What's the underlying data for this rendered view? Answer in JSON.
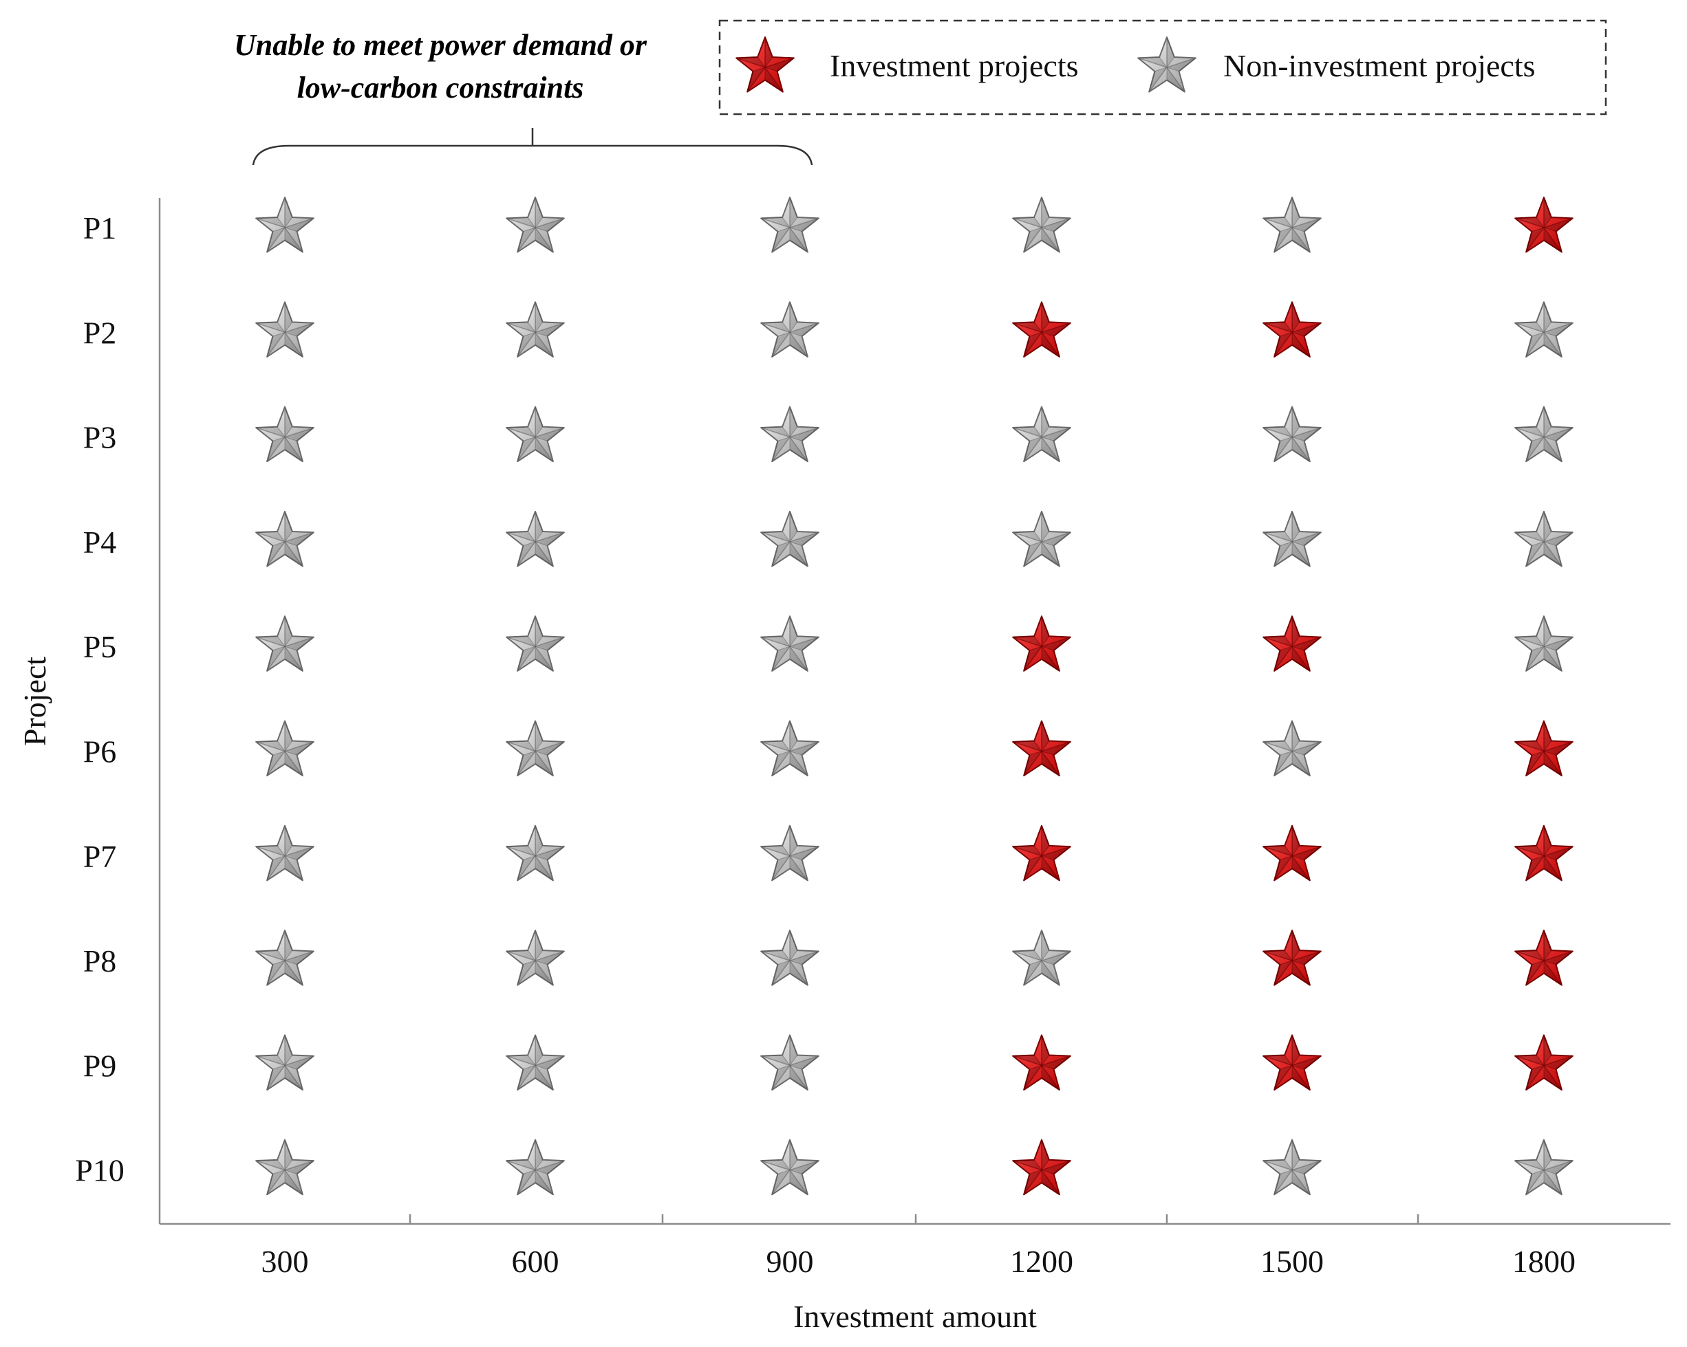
{
  "colors": {
    "investment": "#e01010",
    "investment_dark": "#7a0000",
    "non_investment": "#c4c4c4",
    "non_investment_dark": "#6a6a6a",
    "annotation": "#ee1111",
    "axis": "#8c8c8c"
  },
  "annotation": {
    "line1": "Unable to meet power demand or",
    "line2": "low-carbon constraints",
    "covers_investment_amounts": [
      300,
      600,
      900
    ]
  },
  "chart_data": {
    "type": "scatter",
    "title": "",
    "xlabel": "Investment amount",
    "ylabel": "Project",
    "categories": [
      "300",
      "600",
      "900",
      "1200",
      "1500",
      "1800"
    ],
    "projects": [
      "P1",
      "P2",
      "P3",
      "P4",
      "P5",
      "P6",
      "P7",
      "P8",
      "P9",
      "P10"
    ],
    "legend": {
      "position": "top-right",
      "entries": [
        {
          "name": "Investment projects",
          "key": "investment"
        },
        {
          "name": "Non-investment projects",
          "key": "non_investment"
        }
      ]
    },
    "investment_matrix": [
      [
        0,
        0,
        0,
        0,
        0,
        1
      ],
      [
        0,
        0,
        0,
        1,
        1,
        0
      ],
      [
        0,
        0,
        0,
        0,
        0,
        0
      ],
      [
        0,
        0,
        0,
        0,
        0,
        0
      ],
      [
        0,
        0,
        0,
        1,
        1,
        0
      ],
      [
        0,
        0,
        0,
        1,
        0,
        1
      ],
      [
        0,
        0,
        0,
        1,
        1,
        1
      ],
      [
        0,
        0,
        0,
        0,
        1,
        1
      ],
      [
        0,
        0,
        0,
        1,
        1,
        1
      ],
      [
        0,
        0,
        0,
        1,
        0,
        0
      ]
    ]
  }
}
